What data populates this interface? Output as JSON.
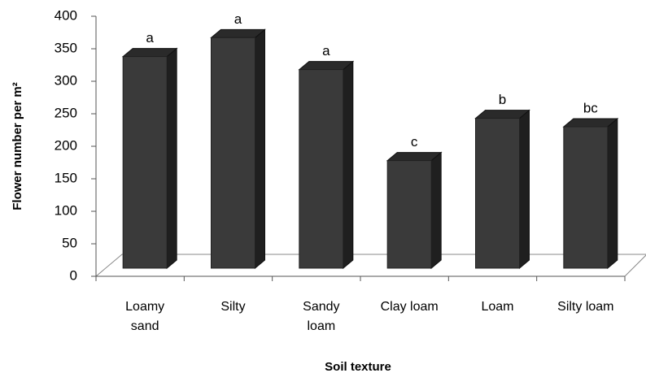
{
  "chart_data": {
    "type": "bar3d",
    "xlabel": "Soil texture",
    "ylabel": "Flower number per m²",
    "categories": [
      "Loamy sand",
      "Silty",
      "Sandy loam",
      "Clay loam",
      "Loam",
      "Silty loam"
    ],
    "values": [
      338,
      367,
      318,
      178,
      243,
      230
    ],
    "annotations": [
      "a",
      "a",
      "a",
      "c",
      "b",
      "bc"
    ],
    "color": "#3a3a3a",
    "ylim": [
      0,
      400
    ],
    "yticks": [
      0,
      50,
      100,
      150,
      200,
      250,
      300,
      350,
      400
    ],
    "grid": false
  }
}
